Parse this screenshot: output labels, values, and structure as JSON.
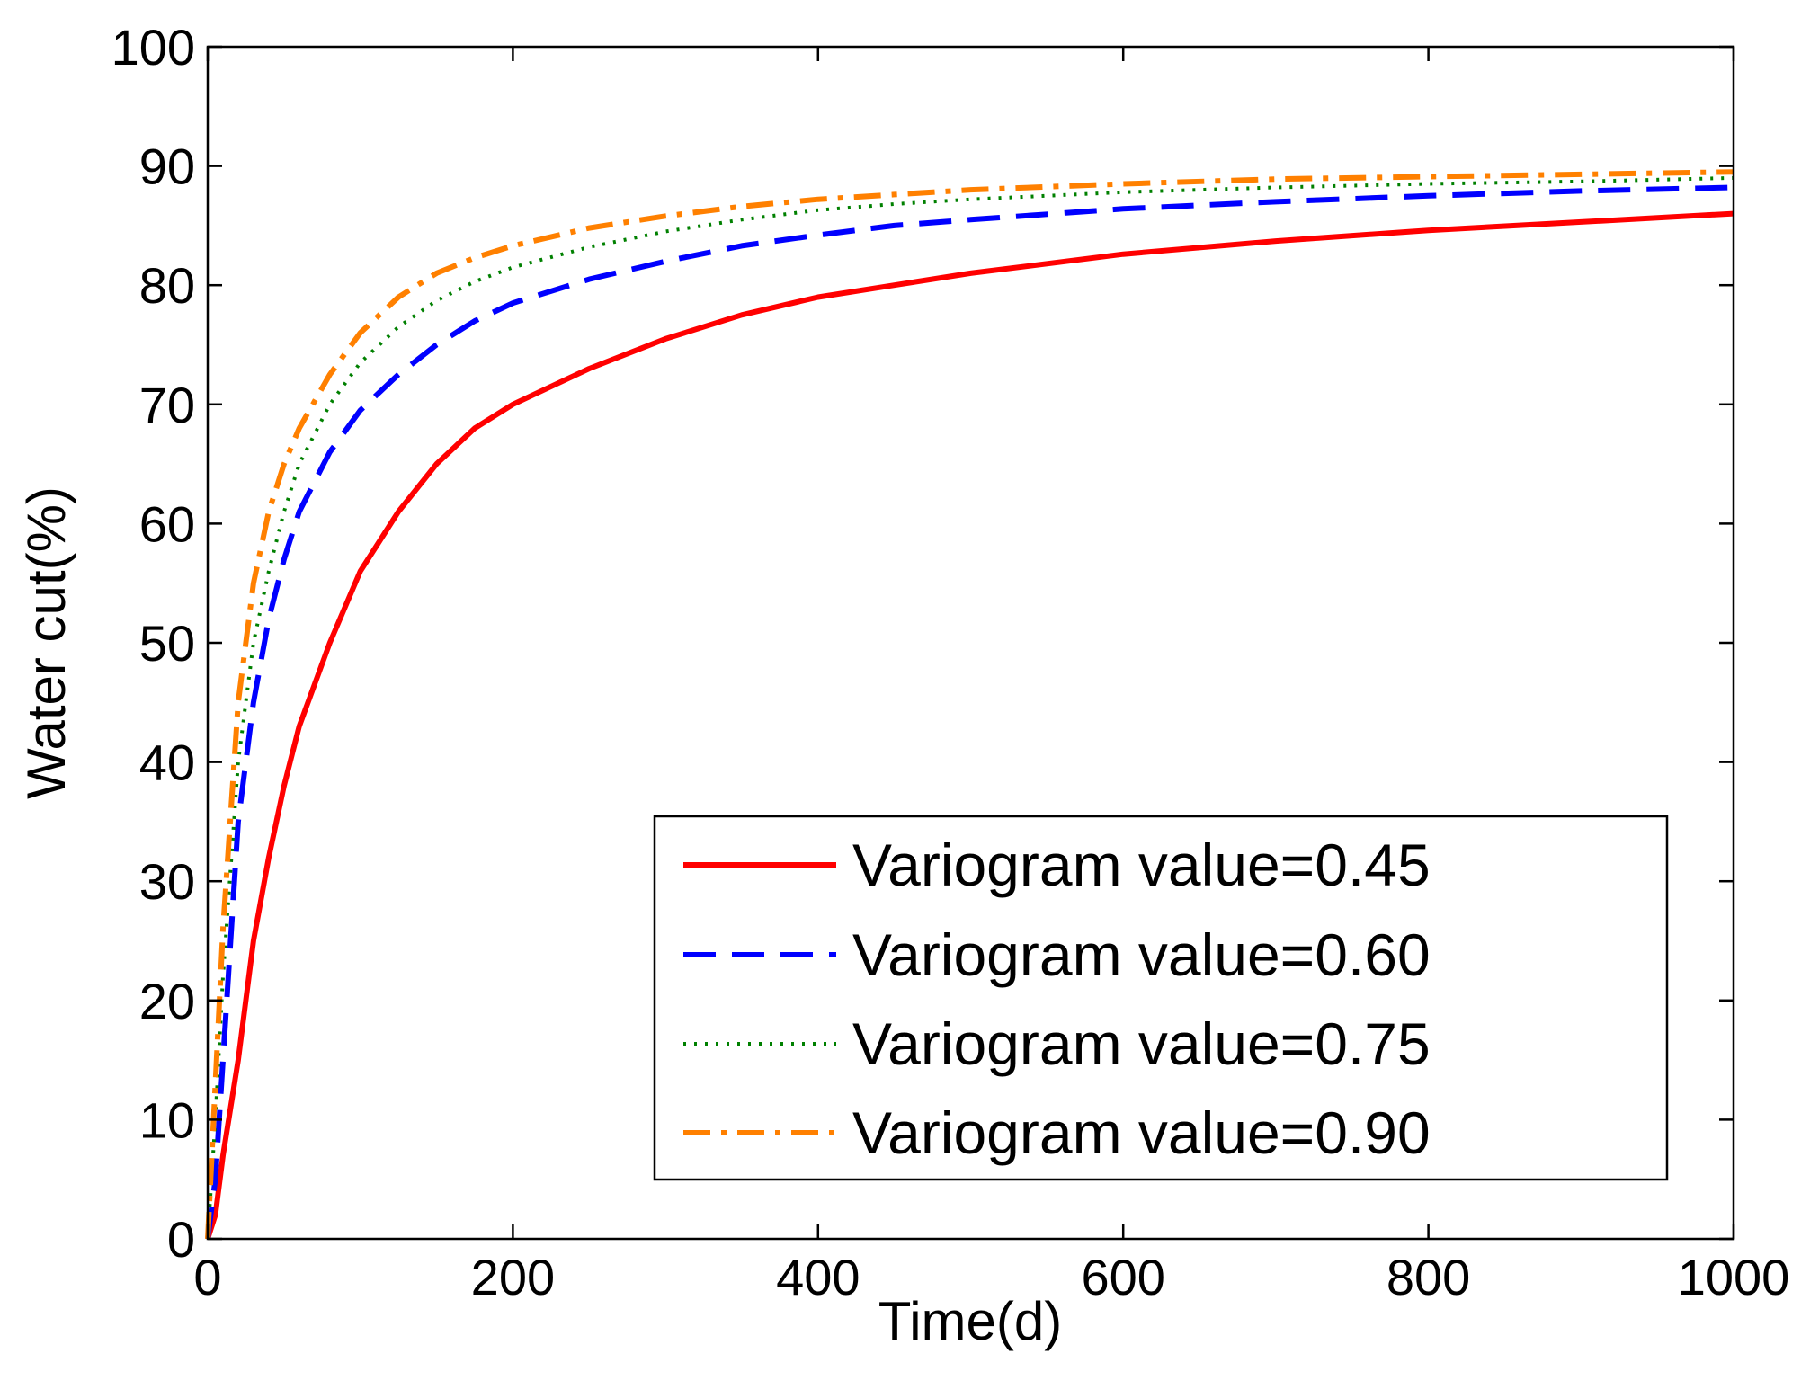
{
  "chart_data": {
    "type": "line",
    "title": "",
    "xlabel": "Time(d)",
    "ylabel": "Water cut(%)",
    "xlim": [
      0,
      1000
    ],
    "ylim": [
      0,
      100
    ],
    "xticks": [
      0,
      200,
      400,
      600,
      800,
      1000
    ],
    "yticks": [
      0,
      10,
      20,
      30,
      40,
      50,
      60,
      70,
      80,
      90,
      100
    ],
    "grid": false,
    "legend_position": "bottom-right",
    "x": [
      0,
      5,
      10,
      20,
      30,
      40,
      50,
      60,
      80,
      100,
      125,
      150,
      175,
      200,
      250,
      300,
      350,
      400,
      450,
      500,
      600,
      700,
      800,
      900,
      1000
    ],
    "series": [
      {
        "name": "Variogram value=0.45",
        "color": "#ff0000",
        "dash": "solid",
        "values": [
          0,
          2,
          7,
          15,
          25,
          32,
          38,
          43,
          50,
          56,
          61,
          65,
          68,
          70,
          73,
          75.5,
          77.5,
          79,
          80,
          81,
          82.6,
          83.7,
          84.6,
          85.3,
          86
        ]
      },
      {
        "name": "Variogram value=0.60",
        "color": "#0000ff",
        "dash": "dashed",
        "values": [
          0,
          5,
          15,
          35,
          45,
          52,
          57,
          61,
          66,
          69.5,
          72.5,
          75,
          77,
          78.5,
          80.5,
          82,
          83.3,
          84.2,
          85,
          85.5,
          86.4,
          87,
          87.5,
          87.9,
          88.2
        ]
      },
      {
        "name": "Variogram value=0.75",
        "color": "#008000",
        "dash": "dotted",
        "values": [
          0,
          10,
          22,
          40,
          50,
          56,
          61,
          65,
          70,
          73.5,
          76.5,
          78.7,
          80.3,
          81.5,
          83.2,
          84.5,
          85.5,
          86.3,
          86.8,
          87.2,
          87.8,
          88.2,
          88.5,
          88.7,
          89
        ]
      },
      {
        "name": "Variogram value=0.90",
        "color": "#ff8000",
        "dash": "dash-dot",
        "values": [
          0,
          13,
          26,
          45,
          55,
          61,
          65,
          68,
          72.5,
          76,
          79,
          81,
          82.3,
          83.3,
          84.8,
          85.8,
          86.6,
          87.2,
          87.6,
          88,
          88.5,
          88.9,
          89.1,
          89.3,
          89.5
        ]
      }
    ]
  }
}
